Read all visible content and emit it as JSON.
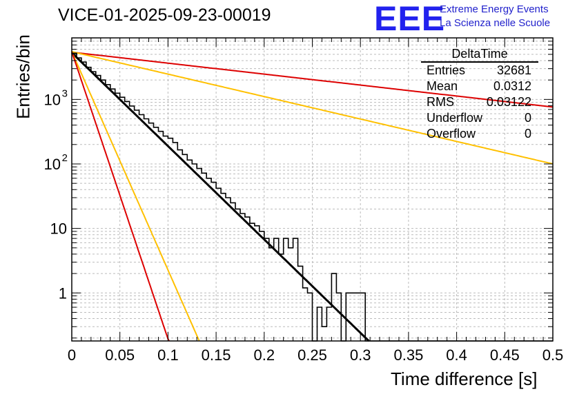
{
  "chart_data": {
    "type": "histogram",
    "title": "VICE-01-2025-09-23-00019",
    "xlabel": "Time difference [s]",
    "ylabel": "Entries/bin",
    "xlim": [
      0,
      0.5
    ],
    "ylim": [
      0.18,
      9000
    ],
    "yscale": "log",
    "x_ticks": [
      {
        "value": 0,
        "label": "0"
      },
      {
        "value": 0.05,
        "label": "0.05"
      },
      {
        "value": 0.1,
        "label": "0.1"
      },
      {
        "value": 0.15,
        "label": "0.15"
      },
      {
        "value": 0.2,
        "label": "0.2"
      },
      {
        "value": 0.25,
        "label": "0.25"
      },
      {
        "value": 0.3,
        "label": "0.3"
      },
      {
        "value": 0.35,
        "label": "0.35"
      },
      {
        "value": 0.4,
        "label": "0.4"
      },
      {
        "value": 0.45,
        "label": "0.45"
      },
      {
        "value": 0.5,
        "label": "0.5"
      }
    ],
    "y_ticks": [
      {
        "value": 1,
        "label": "1"
      },
      {
        "value": 10,
        "label": "10"
      },
      {
        "value": 100,
        "label": "10",
        "sup": "2"
      },
      {
        "value": 1000,
        "label": "10",
        "sup": "3"
      }
    ],
    "bin_width": 0.005,
    "histogram_values": [
      5200,
      4400,
      3800,
      3150,
      2700,
      2350,
      2000,
      1700,
      1450,
      1250,
      1080,
      930,
      790,
      680,
      580,
      500,
      430,
      370,
      320,
      270,
      250,
      215,
      165,
      140,
      115,
      100,
      85,
      72,
      60,
      52,
      42,
      35,
      30,
      25,
      20,
      17,
      15,
      12,
      11,
      9,
      7,
      5,
      7,
      4,
      7,
      5,
      7,
      2.6,
      1.2,
      1,
      0,
      0.6,
      0.3,
      0.6,
      2,
      1,
      0,
      1,
      1,
      1,
      1,
      0,
      0,
      0,
      0,
      0,
      0,
      0,
      0,
      0,
      0,
      0,
      0,
      0,
      0,
      0,
      0,
      0,
      0,
      0,
      0,
      0,
      0,
      0,
      0,
      0,
      0,
      0,
      0,
      0,
      0,
      0,
      0,
      0,
      0,
      0,
      0,
      0,
      0,
      0
    ],
    "curves": [
      {
        "name": "fit",
        "color": "#000000",
        "A": 5300,
        "tau": 0.03,
        "x_end": 0.5
      },
      {
        "name": "red-slow",
        "color": "#dd0000",
        "A": 5400,
        "tau": 0.2555,
        "x_end": 0.5
      },
      {
        "name": "orange-slow",
        "color": "#ffc000",
        "A": 5500,
        "tau": 0.1248,
        "x_end": 0.5
      },
      {
        "name": "orange-fast",
        "color": "#ffc000",
        "A": 5500,
        "tau": 0.01283,
        "x_end": 0.5
      },
      {
        "name": "red-fast",
        "color": "#dd0000",
        "A": 5500,
        "tau": 0.00975,
        "x_end": 0.5
      }
    ]
  },
  "header": {
    "title": "VICE-01-2025-09-23-00019",
    "logo": "EEE",
    "logo_line1": "Extreme Energy Events",
    "logo_line2": "La Scienza nelle Scuole"
  },
  "stats": {
    "title": "DeltaTime",
    "rows": [
      {
        "key": "Entries",
        "value": "32681"
      },
      {
        "key": "Mean",
        "value": "0.0312"
      },
      {
        "key": "RMS",
        "value": "0.03122"
      },
      {
        "key": "Underflow",
        "value": "0"
      },
      {
        "key": "Overflow",
        "value": "0"
      }
    ]
  },
  "axes": {
    "xlabel": "Time difference [s]",
    "ylabel": "Entries/bin"
  }
}
